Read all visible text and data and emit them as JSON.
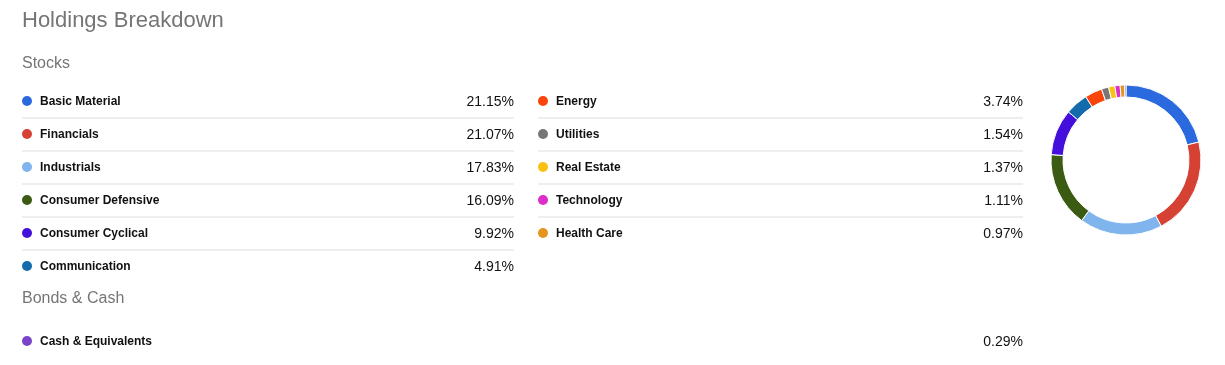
{
  "chart_data": {
    "type": "donut",
    "title": "Holdings Breakdown",
    "annotations": [
      "Stocks",
      "Bonds & Cash"
    ],
    "categories": [
      "Basic Material",
      "Financials",
      "Industrials",
      "Consumer Defensive",
      "Consumer Cyclical",
      "Communication",
      "Energy",
      "Utilities",
      "Real Estate",
      "Technology",
      "Health Care",
      "Cash & Equivalents"
    ],
    "values": [
      21.15,
      21.07,
      17.83,
      16.09,
      9.92,
      4.91,
      3.74,
      1.54,
      1.37,
      1.11,
      0.97,
      0.29
    ],
    "value_labels": [
      "21.15%",
      "21.07%",
      "17.83%",
      "16.09%",
      "9.92%",
      "4.91%",
      "3.74%",
      "1.54%",
      "1.37%",
      "1.11%",
      "0.97%",
      "0.29%"
    ],
    "colors": [
      "#2a6ade",
      "#d54133",
      "#7fb4ec",
      "#3c5b12",
      "#440fdb",
      "#136bac",
      "#fb4409",
      "#777777",
      "#fbc010",
      "#dc2ec8",
      "#e6951c",
      "#7a45c8"
    ],
    "legend": "left"
  }
}
